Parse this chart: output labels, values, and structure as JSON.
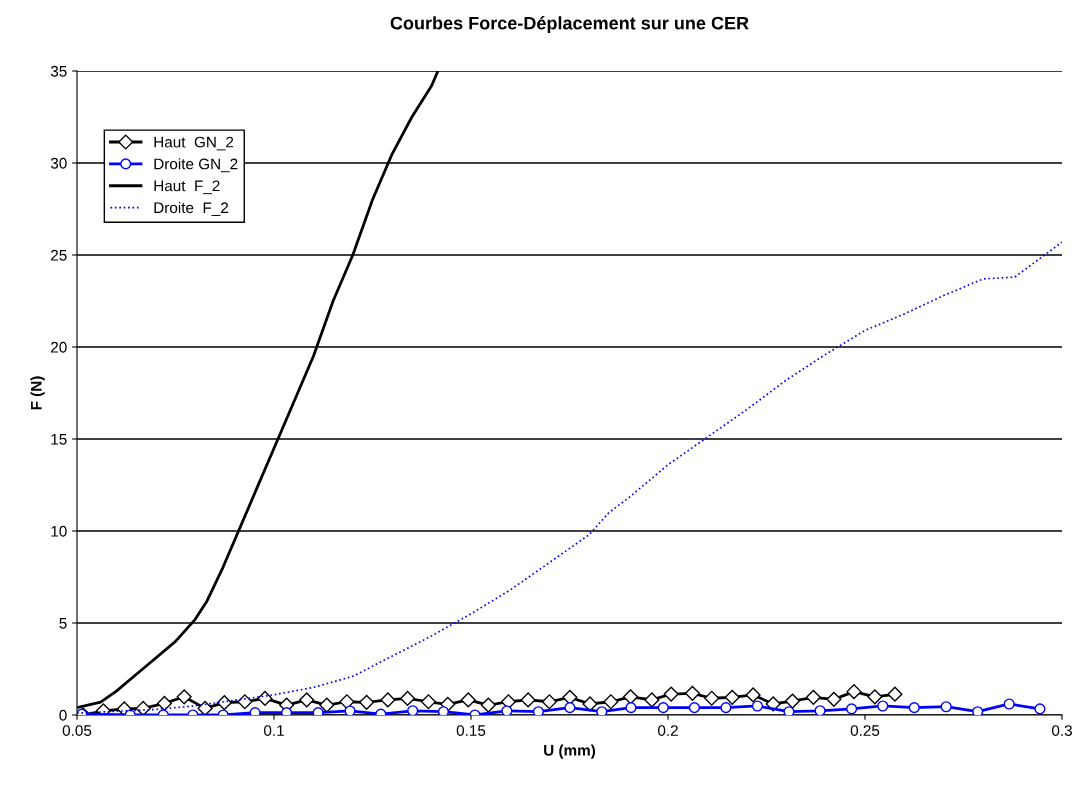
{
  "chart_data": {
    "type": "line",
    "title": "Courbes Force-Déplacement sur une CER",
    "xlabel": "U (mm)",
    "ylabel": "F (N)",
    "xlim": [
      0.05,
      0.3
    ],
    "xticks": [
      0.05,
      0.1,
      0.15,
      0.2,
      0.25,
      0.3
    ],
    "ylim": [
      0,
      35
    ],
    "yticks": [
      0,
      5,
      10,
      15,
      20,
      25,
      30,
      35
    ],
    "grid": "y",
    "legend": "top left",
    "series": [
      {
        "name": "Haut  GN_2",
        "color": "#000000",
        "marker": "diamond",
        "line_style": "solid",
        "x": [
          0.0516,
          0.0567,
          0.062,
          0.0668,
          0.0722,
          0.0772,
          0.0825,
          0.0874,
          0.0926,
          0.0977,
          0.1032,
          0.1083,
          0.1134,
          0.1185,
          0.1235,
          0.1289,
          0.1339,
          0.1392,
          0.1441,
          0.1493,
          0.1544,
          0.1595,
          0.1645,
          0.1699,
          0.1751,
          0.1802,
          0.1855,
          0.1905,
          0.1959,
          0.2008,
          0.2062,
          0.2111,
          0.2163,
          0.2216,
          0.2267,
          0.2316,
          0.2369,
          0.2421,
          0.2472,
          0.2525,
          0.2576
        ],
        "values": [
          0,
          0.23,
          0.33,
          0.36,
          0.63,
          0.99,
          0.36,
          0.67,
          0.72,
          0.9,
          0.54,
          0.82,
          0.54,
          0.72,
          0.69,
          0.82,
          0.9,
          0.72,
          0.58,
          0.82,
          0.54,
          0.72,
          0.82,
          0.72,
          0.96,
          0.6,
          0.72,
          0.99,
          0.82,
          1.14,
          1.18,
          0.91,
          0.96,
          1.09,
          0.6,
          0.76,
          0.96,
          0.85,
          1.27,
          0.99,
          1.13
        ]
      },
      {
        "name": "Droite GN_2",
        "color": "#0000ff",
        "marker": "circle",
        "line_style": "solid",
        "x": [
          0.0512,
          0.0635,
          0.0719,
          0.0794,
          0.0871,
          0.0952,
          0.1032,
          0.1112,
          0.1193,
          0.1271,
          0.1352,
          0.143,
          0.151,
          0.1591,
          0.1671,
          0.1751,
          0.1832,
          0.1906,
          0.1988,
          0.2067,
          0.2147,
          0.2227,
          0.2307,
          0.2386,
          0.2466,
          0.2545,
          0.2625,
          0.2706,
          0.2786,
          0.2866,
          0.2944
        ],
        "values": [
          0.05,
          0,
          0,
          0,
          0,
          0.13,
          0.13,
          0.13,
          0.22,
          0.05,
          0.23,
          0.18,
          0,
          0.22,
          0.18,
          0.4,
          0.18,
          0.4,
          0.4,
          0.4,
          0.4,
          0.49,
          0.18,
          0.23,
          0.33,
          0.49,
          0.4,
          0.45,
          0.18,
          0.6,
          0.33
        ]
      },
      {
        "name": "Haut  F_2",
        "color": "#000000",
        "marker": "none",
        "line_style": "solid",
        "x": [
          0.05,
          0.056,
          0.06,
          0.065,
          0.07,
          0.075,
          0.08,
          0.083,
          0.087,
          0.09,
          0.095,
          0.1,
          0.105,
          0.11,
          0.115,
          0.12,
          0.125,
          0.13,
          0.135,
          0.14,
          0.1416
        ],
        "values": [
          0.4,
          0.7,
          1.3,
          2.2,
          3.1,
          4.0,
          5.2,
          6.2,
          8,
          9.5,
          12,
          14.5,
          17,
          19.5,
          22.5,
          25,
          28,
          30.5,
          32.5,
          34.2,
          35
        ]
      },
      {
        "name": "Droite  F_2",
        "color": "#0000ff",
        "marker": "none",
        "line_style": "dotted",
        "x": [
          0.05,
          0.07,
          0.08,
          0.09,
          0.1,
          0.11,
          0.12,
          0.13,
          0.14,
          0.15,
          0.16,
          0.17,
          0.18,
          0.185,
          0.19,
          0.2,
          0.21,
          0.22,
          0.23,
          0.24,
          0.25,
          0.26,
          0.27,
          0.28,
          0.288,
          0.3
        ],
        "values": [
          0.1,
          0.3,
          0.5,
          0.8,
          1.1,
          1.5,
          2.1,
          3.2,
          4.3,
          5.5,
          6.8,
          8.3,
          9.8,
          11,
          11.8,
          13.6,
          15.1,
          16.6,
          18.2,
          19.6,
          20.9,
          21.8,
          22.8,
          23.7,
          23.8,
          25.7
        ]
      }
    ]
  }
}
